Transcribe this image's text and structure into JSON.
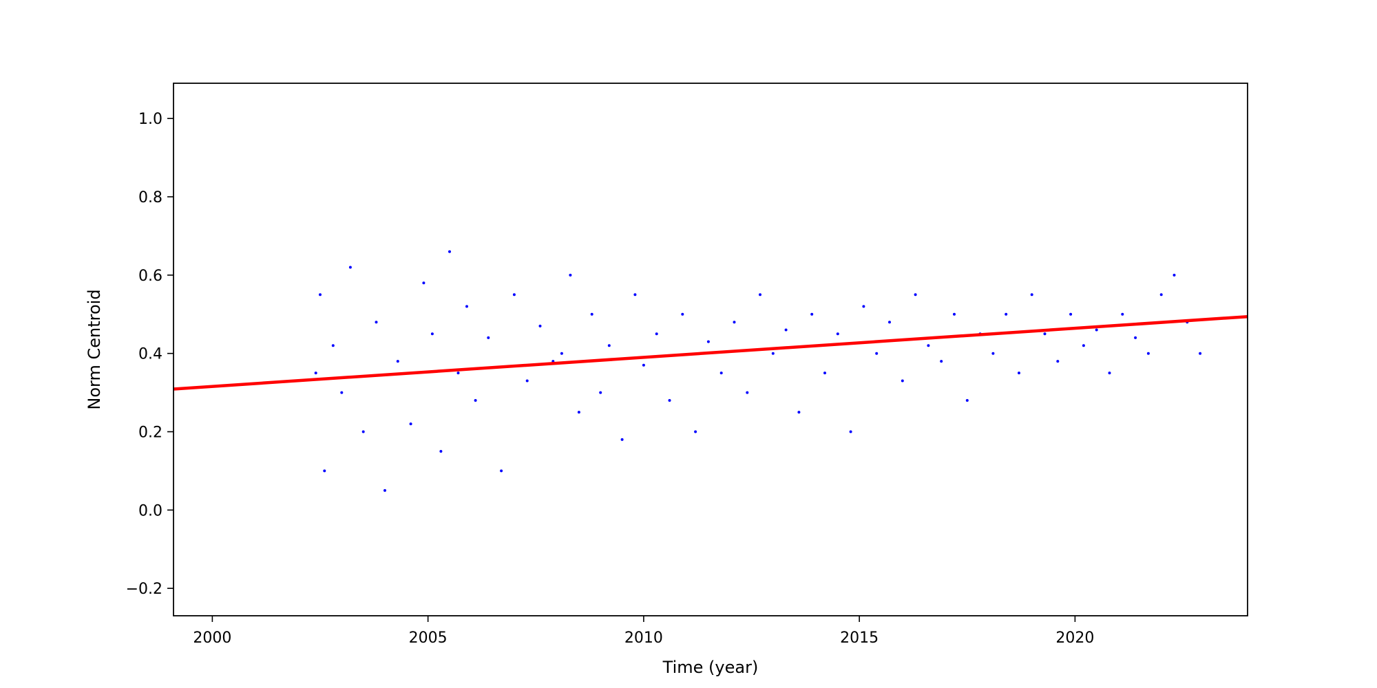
{
  "chart_data": {
    "type": "scatter",
    "title": "",
    "xlabel": "Time (year)",
    "ylabel": "Norm Centroid",
    "xlim": [
      1999.1,
      2024.0
    ],
    "ylim": [
      -0.27,
      1.09
    ],
    "xticks": [
      2000,
      2005,
      2010,
      2015,
      2020
    ],
    "xtick_labels": [
      "2000",
      "2005",
      "2010",
      "2015",
      "2020"
    ],
    "yticks": [
      -0.2,
      0.0,
      0.2,
      0.4,
      0.6,
      0.8,
      1.0
    ],
    "ytick_labels": [
      "−0.2",
      "0.0",
      "0.2",
      "0.4",
      "0.6",
      "0.8",
      "1.0"
    ],
    "grid": false,
    "legend": "none",
    "colors": {
      "points": "#0000ff",
      "trend": "#ff0000",
      "frame": "#000000"
    },
    "series": [
      {
        "kind": "points",
        "x": [
          2002.4,
          2002.5,
          2002.6,
          2002.8,
          2003.0,
          2003.2,
          2003.5,
          2003.8,
          2004.0,
          2004.3,
          2004.6,
          2004.9,
          2005.1,
          2005.3,
          2005.5,
          2005.7,
          2005.9,
          2006.1,
          2006.4,
          2006.7,
          2007.0,
          2007.3,
          2007.6,
          2007.9,
          2008.1,
          2008.3,
          2008.5,
          2008.8,
          2009.0,
          2009.2,
          2009.5,
          2009.8,
          2010.0,
          2010.3,
          2010.6,
          2010.9,
          2011.2,
          2011.5,
          2011.8,
          2012.1,
          2012.4,
          2012.7,
          2013.0,
          2013.3,
          2013.6,
          2013.9,
          2014.2,
          2014.5,
          2014.8,
          2015.1,
          2015.4,
          2015.7,
          2016.0,
          2016.3,
          2016.6,
          2016.9,
          2017.2,
          2017.5,
          2017.8,
          2018.1,
          2018.4,
          2018.7,
          2019.0,
          2019.3,
          2019.6,
          2019.9,
          2020.2,
          2020.5,
          2020.8,
          2021.1,
          2021.4,
          2021.7,
          2022.0,
          2022.3,
          2022.6,
          2022.9
        ],
        "y": [
          0.35,
          0.55,
          0.1,
          0.42,
          0.3,
          0.62,
          0.2,
          0.48,
          0.05,
          0.38,
          0.22,
          0.58,
          0.45,
          0.15,
          0.66,
          0.35,
          0.52,
          0.28,
          0.44,
          0.1,
          0.55,
          0.33,
          0.47,
          0.38,
          0.4,
          0.6,
          0.25,
          0.5,
          0.3,
          0.42,
          0.18,
          0.55,
          0.37,
          0.45,
          0.28,
          0.5,
          0.2,
          0.43,
          0.35,
          0.48,
          0.3,
          0.55,
          0.4,
          0.46,
          0.25,
          0.5,
          0.35,
          0.45,
          0.2,
          0.52,
          0.4,
          0.48,
          0.33,
          0.55,
          0.42,
          0.38,
          0.5,
          0.28,
          0.45,
          0.4,
          0.5,
          0.35,
          0.55,
          0.45,
          0.38,
          0.5,
          0.42,
          0.46,
          0.35,
          0.5,
          0.44,
          0.4,
          0.55,
          0.6,
          0.48,
          0.4
        ]
      },
      {
        "kind": "line",
        "x": [
          1999.1,
          2024.0
        ],
        "y": [
          0.309,
          0.494
        ]
      }
    ]
  }
}
